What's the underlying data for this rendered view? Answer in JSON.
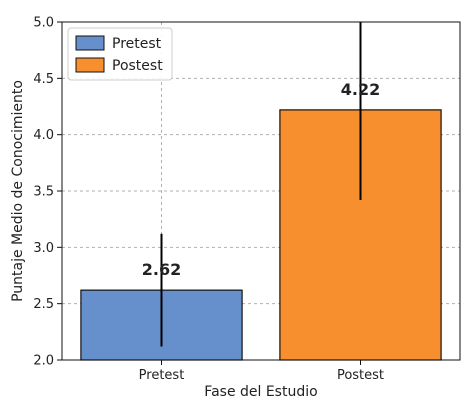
{
  "chart_data": {
    "type": "bar",
    "categories": [
      "Pretest",
      "Postest"
    ],
    "values": [
      2.62,
      4.22
    ],
    "error": [
      0.5,
      0.8
    ],
    "data_labels": [
      "2.62",
      "4.22"
    ],
    "colors": [
      "#6690cc",
      "#f78f2e"
    ],
    "edge_color": "#111111",
    "xlabel": "Fase del Estudio",
    "ylabel": "Puntaje Medio de Conocimiento",
    "ylim": [
      2.0,
      5.0
    ],
    "yticks": [
      "2.0",
      "2.5",
      "3.0",
      "3.5",
      "4.0",
      "4.5",
      "5.0"
    ],
    "legend": {
      "placement": "top-left",
      "entries": [
        {
          "label": "Pretest",
          "color": "#6690cc"
        },
        {
          "label": "Postest",
          "color": "#f78f2e"
        }
      ]
    },
    "grid": true
  }
}
